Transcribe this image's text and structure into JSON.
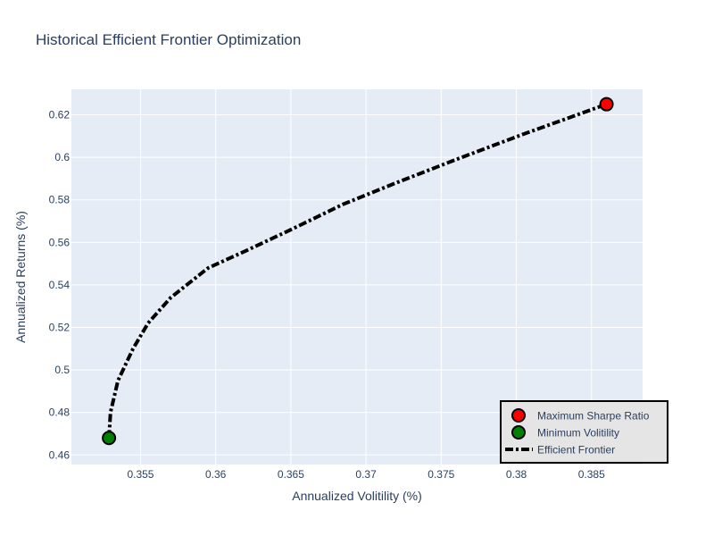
{
  "chart_data": {
    "type": "line",
    "title": "Historical Efficient Frontier Optimization",
    "xlabel": "Annualized Volitility (%)",
    "ylabel": "Annualized Returns (%)",
    "xlim": [
      0.3504,
      0.3884
    ],
    "ylim": [
      0.4555,
      0.632
    ],
    "grid": true,
    "x_ticks": [
      "0.355",
      "0.36",
      "0.365",
      "0.37",
      "0.375",
      "0.38",
      "0.385"
    ],
    "y_ticks": [
      "0.46",
      "0.48",
      "0.5",
      "0.52",
      "0.54",
      "0.56",
      "0.58",
      "0.6",
      "0.62"
    ],
    "legend_position": "bottom-right",
    "series": [
      {
        "name": "Maximum Sharpe Ratio",
        "type": "scatter",
        "color": "#ff0000",
        "x": [
          0.386
        ],
        "y": [
          0.625
        ]
      },
      {
        "name": "Minimum Volitility",
        "type": "scatter",
        "color": "#008000",
        "x": [
          0.3529
        ],
        "y": [
          0.468
        ]
      },
      {
        "name": "Efficient Frontier",
        "type": "line",
        "color": "#000000",
        "dash": "dashdot",
        "x": [
          0.3529,
          0.353,
          0.3535,
          0.3545,
          0.3555,
          0.357,
          0.3595,
          0.362,
          0.365,
          0.3685,
          0.372,
          0.376,
          0.3805,
          0.386
        ],
        "y": [
          0.468,
          0.48,
          0.495,
          0.51,
          0.522,
          0.534,
          0.548,
          0.556,
          0.566,
          0.578,
          0.588,
          0.599,
          0.611,
          0.625
        ]
      }
    ]
  }
}
